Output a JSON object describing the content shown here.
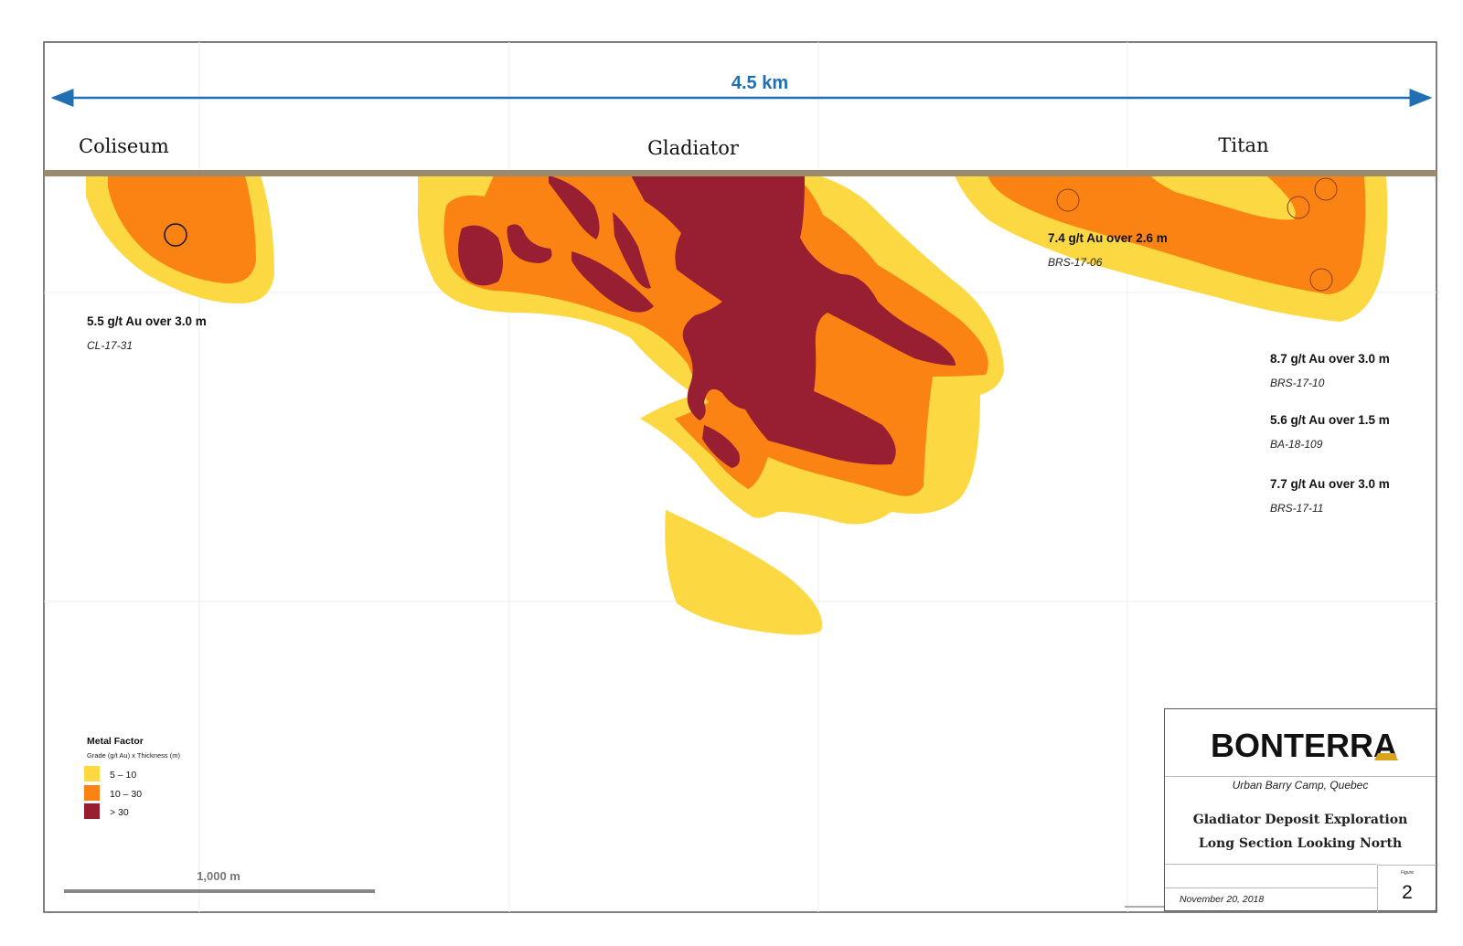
{
  "scale_top": {
    "label": "4.5 km",
    "color": "#1f6fb2"
  },
  "deposits": [
    {
      "name": "Coliseum"
    },
    {
      "name": "Gladiator"
    },
    {
      "name": "Titan"
    }
  ],
  "annotations": [
    {
      "grade": "5.5 g/t Au over 3.0 m",
      "hole": "CL-17-31"
    },
    {
      "grade": "7.4 g/t Au over 2.6 m",
      "hole": "BRS-17-06"
    },
    {
      "grade": "8.7 g/t Au over 3.0 m",
      "hole": "BRS-17-10"
    },
    {
      "grade": "5.6 g/t Au over 1.5 m",
      "hole": "BA-18-109"
    },
    {
      "grade": "7.7 g/t Au over 3.0 m",
      "hole": "BRS-17-11"
    }
  ],
  "legend": {
    "title": "Metal Factor",
    "subtitle": "Grade (g/t Au) x Thickness (m)",
    "items": [
      {
        "label": "5 – 10",
        "color": "#fcd843"
      },
      {
        "label": "10 – 30",
        "color": "#fb8313"
      },
      {
        "label": "> 30",
        "color": "#981e31"
      }
    ]
  },
  "scale_bar": {
    "label": "1,000 m"
  },
  "title_block": {
    "logo": "BONTERRA",
    "location": "Urban Barry Camp, Quebec",
    "title_line1": "Gladiator Deposit Exploration",
    "title_line2": "Long Section Looking North",
    "date": "November 20, 2018",
    "figure_label": "Figure",
    "figure_number": "2"
  },
  "colors": {
    "surface": "#9c8a6e",
    "low": "#fcd843",
    "mid": "#fb8313",
    "high": "#981e31",
    "frame": "#555555"
  }
}
